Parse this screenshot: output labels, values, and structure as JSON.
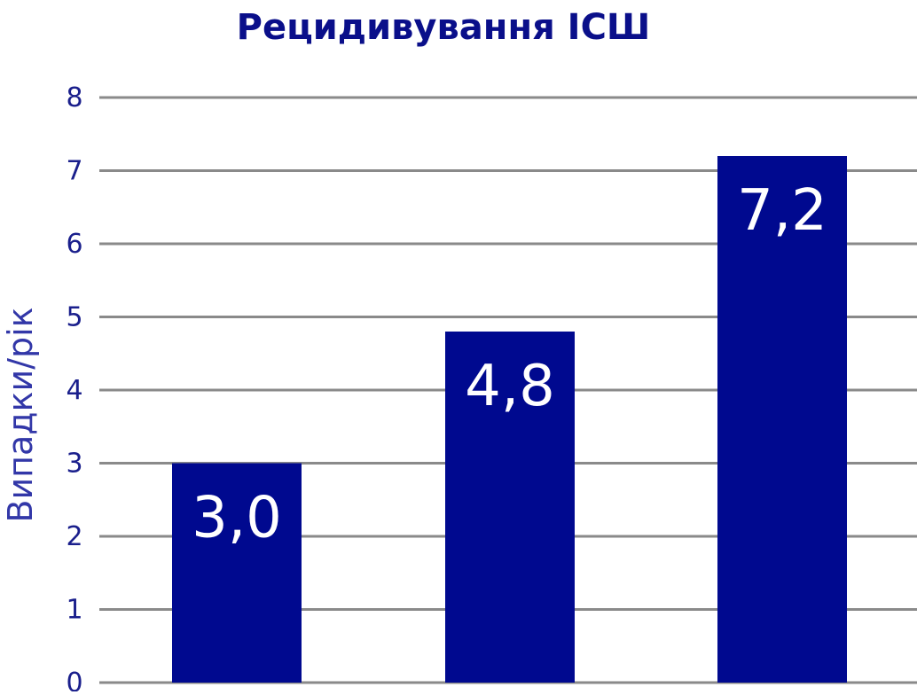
{
  "colors": {
    "bar": "#00098F",
    "title": "#0A0F8A",
    "axis_text": "#1A1F8C",
    "ylabel": "#3237A8",
    "grid": "#8A8A8A",
    "data_label": "#FFFFFF",
    "background": "#FFFFFF"
  },
  "chart_data": {
    "type": "bar",
    "title": "Рецидивування ІСШ",
    "ylabel": "Випадки/рік",
    "xlabel": "",
    "categories": [
      "",
      "",
      ""
    ],
    "values": [
      3.0,
      4.8,
      7.2
    ],
    "data_labels": [
      "3,0",
      "4,8",
      "7,2"
    ],
    "ylim": [
      0,
      8
    ],
    "yticks": [
      0,
      1,
      2,
      3,
      4,
      5,
      6,
      7,
      8
    ],
    "grid": true,
    "legend": "none"
  }
}
